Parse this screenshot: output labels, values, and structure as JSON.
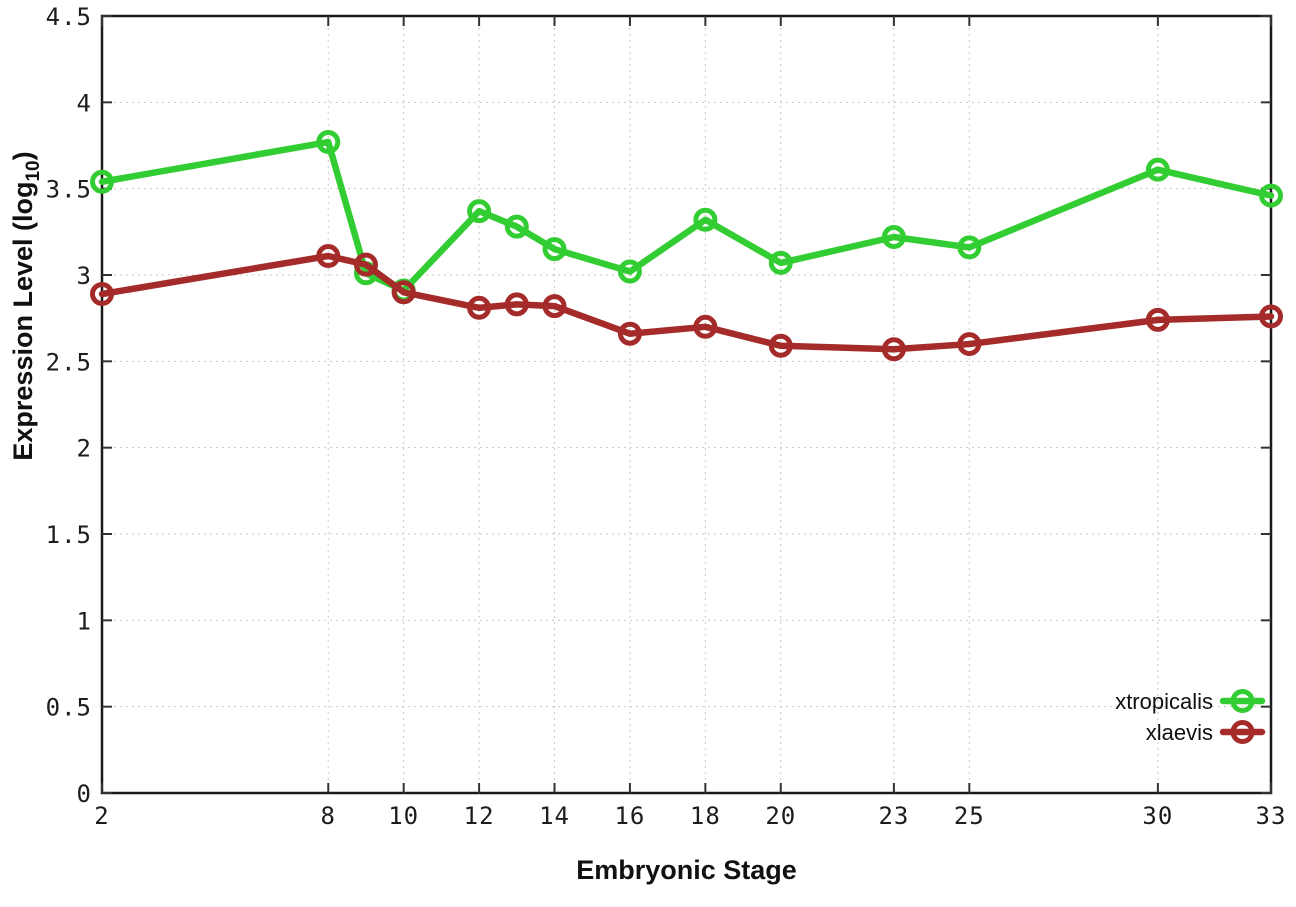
{
  "figure": {
    "background_color": "#ffffff",
    "border_color": "#1a1a1a",
    "grid_color": "#c8c8c8",
    "tick_color": "#333333",
    "text_color": "#1c1c1c"
  },
  "chart_data": {
    "type": "line",
    "title": "",
    "xlabel": "Embryonic Stage",
    "ylabel": "Expression Level (log10)",
    "ylabel_parts": {
      "pre": "Expression Level (log",
      "sub": "10",
      "post": ")"
    },
    "xlim": [
      2,
      33
    ],
    "ylim": [
      0,
      4.5
    ],
    "grid": true,
    "grid_style": "dotted",
    "x_tick_labels": [
      "2",
      "8",
      "10",
      "12",
      "14",
      "16",
      "18",
      "20",
      "23",
      "25",
      "30",
      "33"
    ],
    "x_tick_values": [
      2,
      8,
      10,
      12,
      14,
      16,
      18,
      20,
      23,
      25,
      30,
      33
    ],
    "y_tick_labels": [
      "0",
      "0.5",
      "1",
      "1.5",
      "2",
      "2.5",
      "3",
      "3.5",
      "4",
      "4.5"
    ],
    "y_tick_values": [
      0,
      0.5,
      1,
      1.5,
      2,
      2.5,
      3,
      3.5,
      4,
      4.5
    ],
    "x": [
      2,
      8,
      9,
      10,
      12,
      13,
      14,
      16,
      18,
      20,
      23,
      25,
      30,
      33
    ],
    "series": [
      {
        "name": "xtropicalis",
        "color": "#32cd32",
        "marker": "open-circle",
        "values": [
          3.54,
          3.77,
          3.01,
          2.91,
          3.37,
          3.28,
          3.15,
          3.02,
          3.32,
          3.07,
          3.22,
          3.16,
          3.61,
          3.46
        ]
      },
      {
        "name": "xlaevis",
        "color": "#a52a2a",
        "marker": "open-circle",
        "values": [
          2.89,
          3.11,
          3.06,
          2.9,
          2.81,
          2.83,
          2.82,
          2.66,
          2.7,
          2.59,
          2.57,
          2.6,
          2.74,
          2.76
        ]
      }
    ],
    "legend_position": "bottom-right",
    "legend_entries": [
      "xtropicalis",
      "xlaevis"
    ]
  }
}
